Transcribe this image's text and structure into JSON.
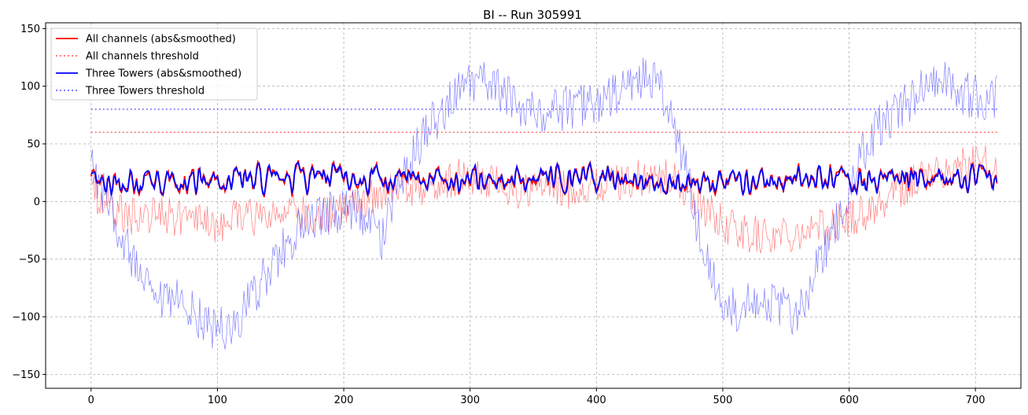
{
  "chart_data": {
    "type": "line",
    "title": "BI -- Run 305991",
    "xlabel": "",
    "ylabel": "",
    "xlim": [
      -36,
      736
    ],
    "ylim": [
      -162,
      155
    ],
    "x_ticks": [
      0,
      100,
      200,
      300,
      400,
      500,
      600,
      700
    ],
    "y_ticks": [
      -150,
      -100,
      -50,
      0,
      50,
      100,
      150
    ],
    "x_tick_labels": [
      "0",
      "100",
      "200",
      "300",
      "400",
      "500",
      "600",
      "700"
    ],
    "y_tick_labels": [
      "−150",
      "−100",
      "−50",
      "0",
      "50",
      "100",
      "150"
    ],
    "grid": true,
    "legend_position": "top-left",
    "n_points": 718,
    "legend": [
      {
        "label": "All channels (abs&smoothed)",
        "color": "#ff0000",
        "style": "solid"
      },
      {
        "label": "All channels threshold",
        "color": "#ff6b6b",
        "style": "dotted"
      },
      {
        "label": "Three Towers (abs&smoothed)",
        "color": "#0000ff",
        "style": "solid"
      },
      {
        "label": "Three Towers threshold",
        "color": "#6b6bff",
        "style": "dotted"
      }
    ],
    "series": [
      {
        "name": "All channels (abs&smoothed)",
        "color": "#ff0000",
        "kind": "smoothed",
        "x": [
          0,
          718
        ],
        "values_range": [
          0,
          42
        ]
      },
      {
        "name": "All channels threshold",
        "color": "#ff6b6b",
        "kind": "threshold",
        "x": [
          0,
          718
        ],
        "values": [
          60,
          60
        ]
      },
      {
        "name": "Three Towers (abs&smoothed)",
        "color": "#0000ff",
        "kind": "smoothed",
        "x": [
          0,
          718
        ],
        "values_range": [
          0,
          42
        ]
      },
      {
        "name": "Three Towers threshold",
        "color": "#6b6bff",
        "kind": "threshold",
        "x": [
          0,
          718
        ],
        "values": [
          80,
          80
        ]
      }
    ],
    "raw_series": [
      {
        "color": "#ff0000",
        "opacity": 0.5,
        "x": [
          0,
          20,
          40,
          60,
          80,
          100,
          120,
          140,
          160,
          180,
          200,
          220,
          240,
          260,
          280,
          300,
          320,
          340,
          360,
          380,
          400,
          420,
          440,
          460,
          480,
          500,
          520,
          540,
          560,
          580,
          600,
          620,
          640,
          660,
          680,
          700,
          718
        ],
        "values": [
          10,
          -8,
          -15,
          -12,
          -18,
          -22,
          -12,
          -14,
          -10,
          -15,
          -8,
          2,
          8,
          12,
          18,
          22,
          15,
          8,
          12,
          10,
          14,
          18,
          20,
          20,
          0,
          -20,
          -28,
          -30,
          -25,
          -22,
          -15,
          -5,
          10,
          22,
          28,
          32,
          35
        ]
      },
      {
        "color": "#0000ff",
        "opacity": 0.5,
        "x": [
          0,
          10,
          20,
          30,
          40,
          50,
          60,
          70,
          80,
          90,
          100,
          110,
          120,
          130,
          140,
          150,
          160,
          170,
          180,
          190,
          200,
          210,
          220,
          230,
          240,
          250,
          260,
          270,
          280,
          290,
          300,
          310,
          320,
          330,
          340,
          350,
          360,
          370,
          380,
          390,
          400,
          410,
          420,
          430,
          440,
          450,
          460,
          470,
          480,
          490,
          500,
          510,
          520,
          530,
          540,
          550,
          560,
          570,
          580,
          590,
          600,
          610,
          620,
          630,
          640,
          650,
          660,
          670,
          680,
          690,
          700,
          710,
          718
        ],
        "values": [
          30,
          5,
          -20,
          -45,
          -70,
          -88,
          -90,
          -85,
          -95,
          -105,
          -110,
          -112,
          -95,
          -80,
          -60,
          -45,
          -30,
          -22,
          -15,
          -10,
          -8,
          -5,
          -20,
          -35,
          5,
          30,
          50,
          70,
          80,
          95,
          100,
          105,
          100,
          90,
          85,
          80,
          80,
          80,
          82,
          85,
          85,
          88,
          95,
          105,
          110,
          100,
          70,
          30,
          -20,
          -60,
          -90,
          -95,
          -80,
          -85,
          -90,
          -95,
          -100,
          -70,
          -45,
          -20,
          0,
          40,
          60,
          72,
          80,
          90,
          105,
          110,
          100,
          95,
          90,
          88,
          90
        ]
      }
    ]
  }
}
